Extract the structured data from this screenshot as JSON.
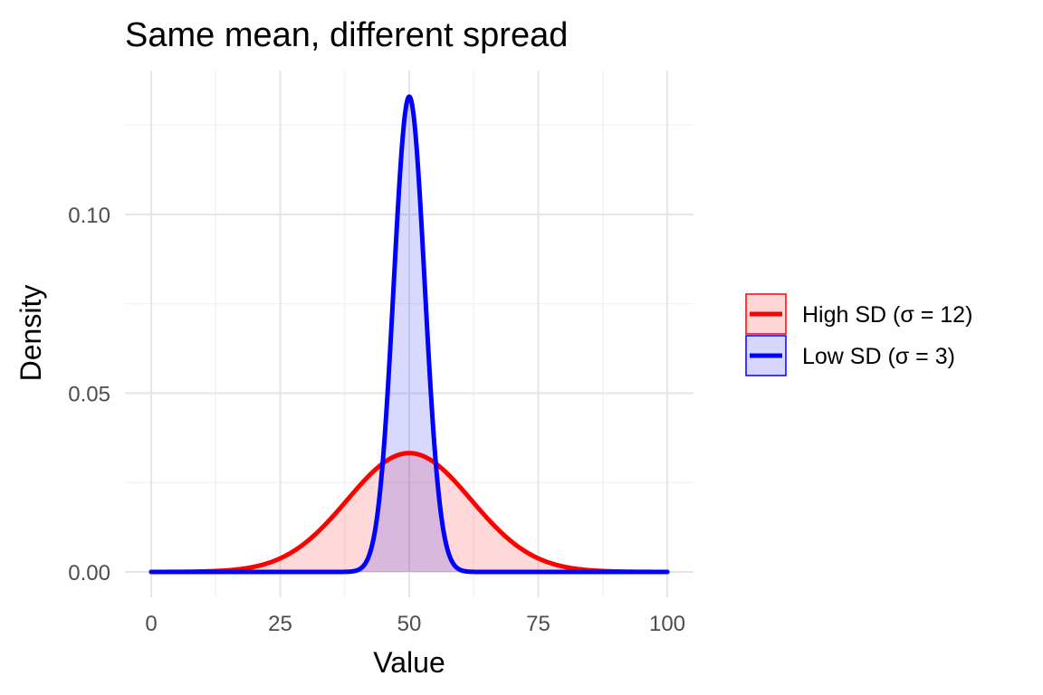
{
  "chart_data": {
    "type": "area",
    "title": "Same mean, different spread",
    "xlabel": "Value",
    "ylabel": "Density",
    "xlim": [
      0,
      100
    ],
    "ylim": [
      0,
      0.133
    ],
    "x_ticks": [
      0,
      25,
      50,
      75,
      100
    ],
    "x_tick_labels": [
      "0",
      "25",
      "50",
      "75",
      "100"
    ],
    "y_ticks": [
      0,
      0.05,
      0.1
    ],
    "y_tick_labels": [
      "0.00",
      "0.05",
      "0.10"
    ],
    "grid": true,
    "legend_position": "right",
    "series": [
      {
        "name": "High SD (σ = 12)",
        "distribution": "normal",
        "mean": 50,
        "sd": 12,
        "peak_density": 0.0332,
        "line_color": "#ff0000",
        "fill_color": "#ffd6d6"
      },
      {
        "name": "Low SD (σ = 3)",
        "distribution": "normal",
        "mean": 50,
        "sd": 3,
        "peak_density": 0.133,
        "line_color": "#0000ff",
        "fill_color": "#d6d6ff"
      }
    ]
  }
}
